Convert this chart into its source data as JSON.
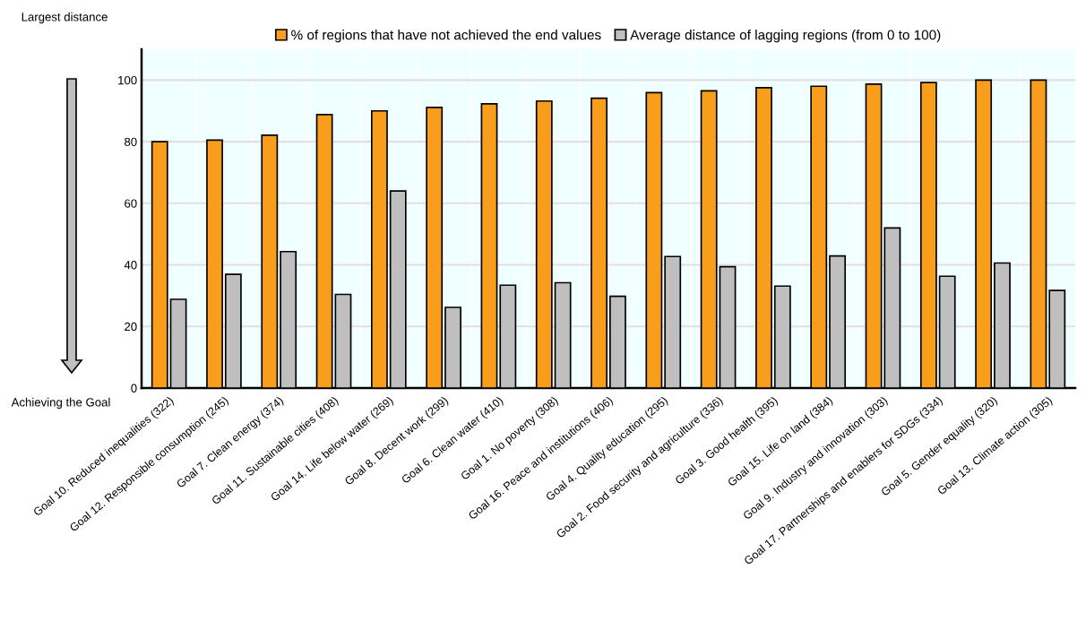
{
  "chart_data": {
    "type": "bar",
    "categories": [
      "Goal 10. Reduced inequalities (322)",
      "Goal 12. Responsible consumption (245)",
      "Goal 7. Clean energy (374)",
      "Goal 11. Sustainable cities (408)",
      "Goal 14. Life below water (269)",
      "Goal 8. Decent work (299)",
      "Goal 6. Clean water (410)",
      "Goal 1. No poverty (308)",
      "Goal 16. Peace and institutions (406)",
      "Goal 4. Quality education (295)",
      "Goal 2. Food security and agriculture (336)",
      "Goal 3. Good health (395)",
      "Goal 15. Life on land (384)",
      "Goal 9. Industry and innovation (303)",
      "Goal 17. Partnerships and enablers for SDGs (334)",
      "Goal 5. Gender equality (320)",
      "Goal 13. Climate action (305)"
    ],
    "series": [
      {
        "name": "% of regions that have not achieved the end values",
        "color": "#f99d1c",
        "values": [
          80.0,
          80.5,
          82.1,
          88.8,
          90.0,
          91.1,
          92.3,
          93.2,
          94.1,
          95.9,
          96.5,
          97.5,
          98.0,
          98.7,
          99.2,
          100,
          100
        ]
      },
      {
        "name": "Average distance of lagging regions (from 0 to 100)",
        "color": "#bfbfbf",
        "values": [
          28.8,
          36.9,
          44.3,
          30.4,
          64.0,
          26.2,
          33.4,
          34.2,
          29.8,
          42.7,
          39.4,
          33.1,
          42.9,
          52.0,
          36.3,
          40.6,
          31.7
        ]
      }
    ],
    "ylim": [
      0,
      110
    ],
    "yticks": [
      0,
      20,
      40,
      60,
      80,
      100
    ],
    "grid": "y",
    "legend": "top",
    "annotations": [
      "Largest distance",
      "Achieving the Goal"
    ]
  }
}
